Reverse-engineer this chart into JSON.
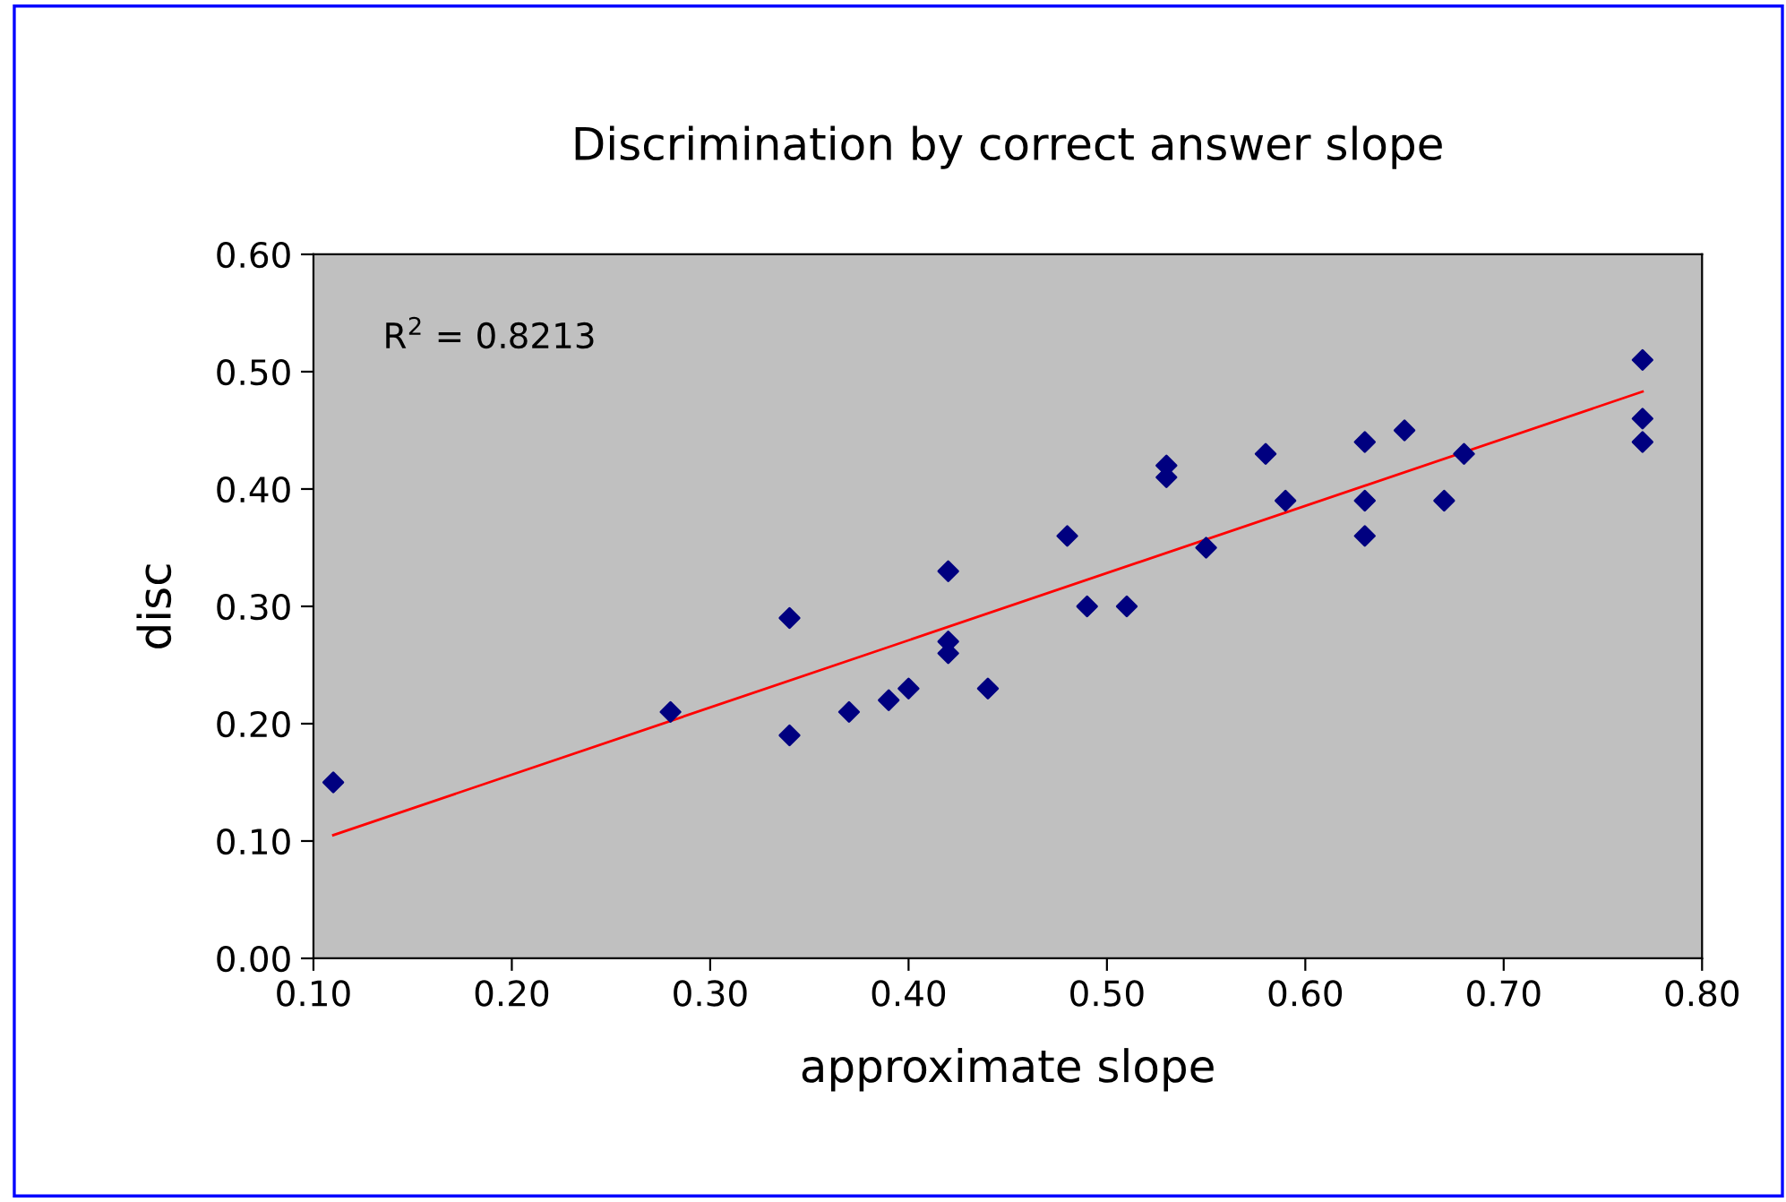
{
  "chart_data": {
    "type": "scatter",
    "title": "Discrimination by correct answer slope",
    "xlabel": "approximate slope",
    "ylabel": "disc",
    "annotations": [
      "R$^{2}$ = 0.8213"
    ],
    "series": [
      {
        "color": "#000080",
        "marker": "diamond",
        "x": [
          0.11,
          0.28,
          0.34,
          0.34,
          0.37,
          0.39,
          0.4,
          0.42,
          0.42,
          0.42,
          0.44,
          0.48,
          0.49,
          0.51,
          0.53,
          0.53,
          0.55,
          0.58,
          0.59,
          0.63,
          0.63,
          0.63,
          0.65,
          0.67,
          0.68,
          0.77,
          0.77,
          0.77
        ],
        "values": [
          0.15,
          0.21,
          0.29,
          0.19,
          0.21,
          0.22,
          0.23,
          0.33,
          0.27,
          0.26,
          0.23,
          0.36,
          0.3,
          0.3,
          0.42,
          0.41,
          0.35,
          0.43,
          0.39,
          0.44,
          0.39,
          0.36,
          0.45,
          0.39,
          0.43,
          0.51,
          0.46,
          0.44
        ]
      },
      {
        "type": "line",
        "color": "#ff0000",
        "x": [
          0.11,
          0.77
        ],
        "values": [
          0.105,
          0.483
        ]
      }
    ],
    "xlim": [
      0.1,
      0.8
    ],
    "xticks": [
      {
        "value": 0.1,
        "label": "0.10"
      },
      {
        "value": 0.2,
        "label": "0.20"
      },
      {
        "value": 0.3,
        "label": "0.30"
      },
      {
        "value": 0.4,
        "label": "0.40"
      },
      {
        "value": 0.5,
        "label": "0.50"
      },
      {
        "value": 0.6,
        "label": "0.60"
      },
      {
        "value": 0.7,
        "label": "0.70"
      },
      {
        "value": 0.8,
        "label": "0.80"
      }
    ],
    "ylim": [
      0.0,
      0.6
    ],
    "yticks": [
      {
        "value": 0.0,
        "label": "0.00"
      },
      {
        "value": 0.1,
        "label": "0.10"
      },
      {
        "value": 0.2,
        "label": "0.20"
      },
      {
        "value": 0.3,
        "label": "0.30"
      },
      {
        "value": 0.4,
        "label": "0.40"
      },
      {
        "value": 0.5,
        "label": "0.50"
      },
      {
        "value": 0.6,
        "label": "0.60"
      }
    ],
    "grid": false,
    "legend": false
  }
}
